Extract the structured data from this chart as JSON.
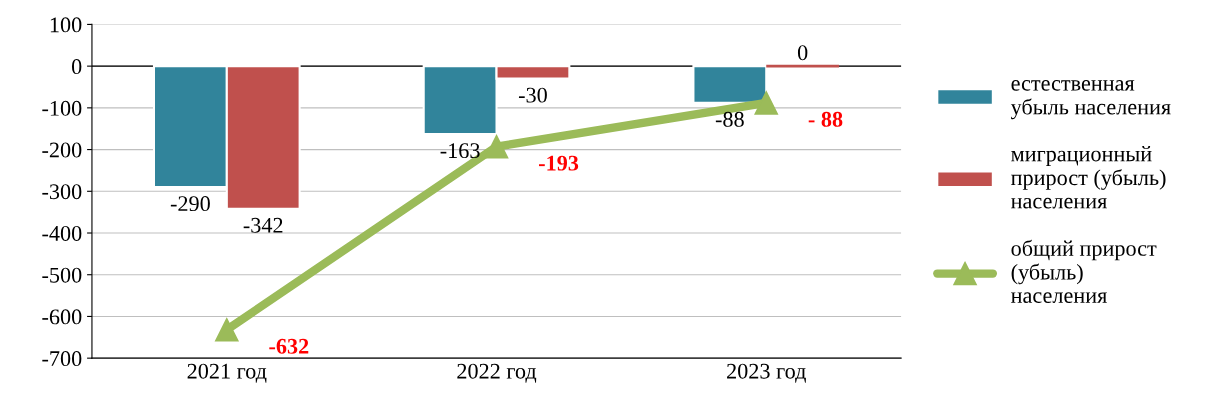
{
  "chart_data": {
    "type": "bar",
    "categories": [
      "2021 год",
      "2022 год",
      "2023 год"
    ],
    "series": [
      {
        "name": "естественная\nубыль населения",
        "color": "#31849b",
        "values": [
          -290,
          -163,
          -88
        ],
        "value_labels": [
          "-290",
          "-163",
          "-88"
        ]
      },
      {
        "name": "миграционный\nприрост (убыль)\nнаселения",
        "color": "#c0504d",
        "values": [
          -342,
          -30,
          0
        ],
        "value_labels": [
          "-342",
          "-30",
          "0"
        ]
      },
      {
        "name": "общий прирост\n(убыль)\nнаселения",
        "type": "line",
        "color": "#9bbb59",
        "marker": "triangle",
        "values": [
          -632,
          -193,
          -88
        ],
        "value_labels": [
          "-632",
          "-193",
          "- 88"
        ]
      }
    ],
    "ylim": [
      -700,
      100
    ],
    "yticks": [
      -700,
      -600,
      -500,
      -400,
      -300,
      -200,
      -100,
      0,
      100
    ],
    "grid": "y",
    "legend": "right"
  }
}
